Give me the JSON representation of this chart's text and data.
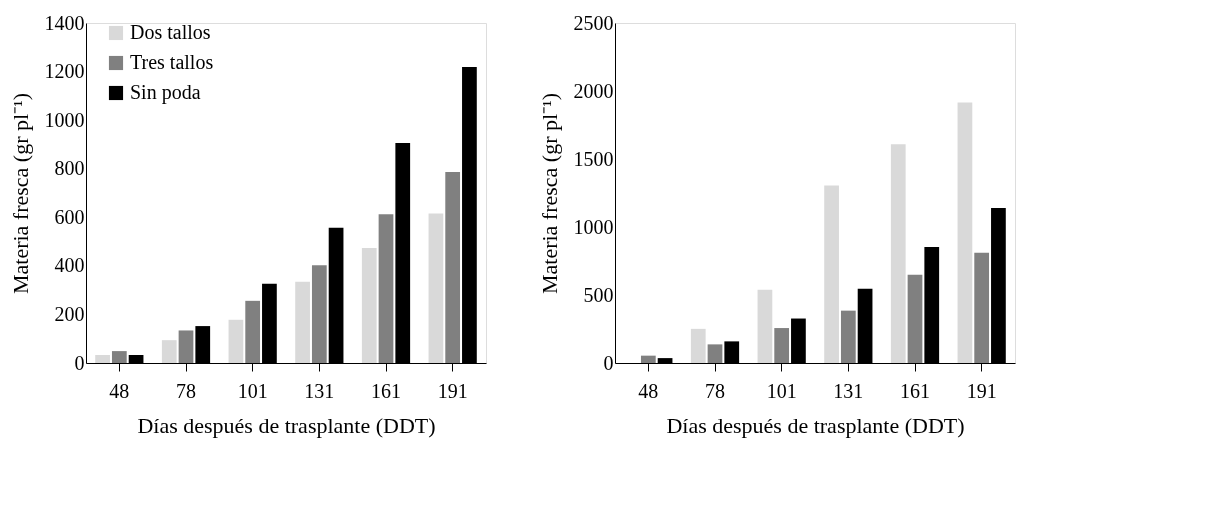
{
  "chart_data": [
    {
      "type": "bar",
      "xlabel": "Días después de trasplante (DDT)",
      "ylabel": "Materia fresca (gr pl⁻¹)",
      "categories": [
        "48",
        "78",
        "101",
        "131",
        "161",
        "191"
      ],
      "series": [
        {
          "name": "Dos tallos",
          "color": "#d9d9d9",
          "values": [
            33,
            94,
            178,
            335,
            474,
            616
          ]
        },
        {
          "name": "Tres tallos",
          "color": "#808080",
          "values": [
            49,
            134,
            256,
            403,
            612,
            786
          ]
        },
        {
          "name": "Sin poda",
          "color": "#000000",
          "values": [
            33,
            152,
            326,
            557,
            906,
            1219
          ]
        }
      ],
      "ylim": [
        0,
        1400
      ],
      "yticks": [
        0,
        200,
        400,
        600,
        800,
        1000,
        1200,
        1400
      ],
      "grid": false,
      "legend": "top left"
    },
    {
      "type": "bar",
      "xlabel": "Días después de trasplante (DDT)",
      "ylabel": "Materia fresca (gr pl⁻¹)",
      "categories": [
        "48",
        "78",
        "101",
        "131",
        "161",
        "191"
      ],
      "series": [
        {
          "name": "Dos tallos",
          "color": "#d9d9d9",
          "values": [
            0,
            251,
            539,
            1305,
            1609,
            1916
          ]
        },
        {
          "name": "Tres tallos",
          "color": "#808080",
          "values": [
            54,
            137,
            257,
            385,
            649,
            810
          ]
        },
        {
          "name": "Sin poda",
          "color": "#000000",
          "values": [
            36,
            159,
            327,
            546,
            853,
            1139
          ]
        }
      ],
      "ylim": [
        0,
        2500
      ],
      "yticks": [
        0,
        500,
        1000,
        1500,
        2000,
        2500
      ],
      "grid": false,
      "legend": "top left"
    }
  ]
}
